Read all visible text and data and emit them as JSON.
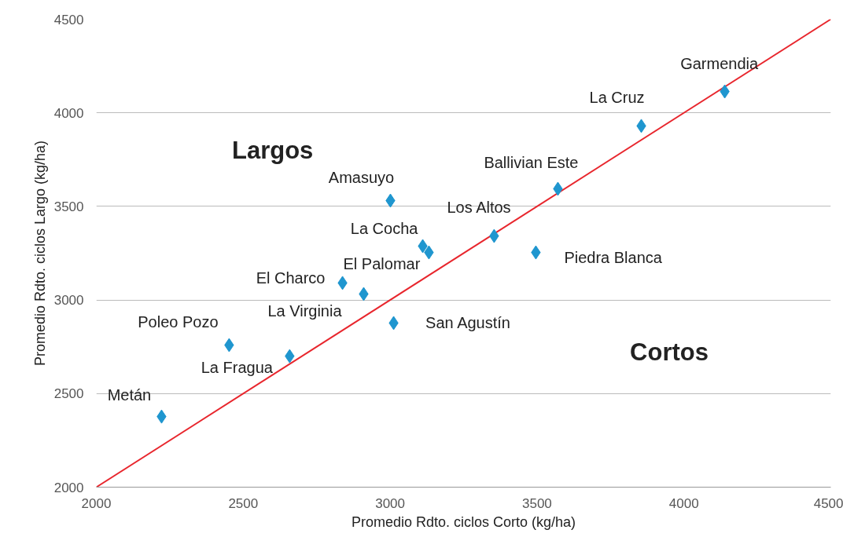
{
  "chart_data": {
    "type": "scatter",
    "xlabel": "Promedio Rdto. ciclos Corto (kg/ha)",
    "ylabel": "Promedio Rdto. ciclos Largo (kg/ha)",
    "xlim": [
      2000,
      4500
    ],
    "xticks": [
      2000,
      2500,
      3000,
      3500,
      4000,
      4500
    ],
    "ylim": [
      2000,
      4500
    ],
    "yticks": [
      2000,
      2500,
      3000,
      3500,
      4000,
      4500
    ],
    "grid": "y",
    "series": [
      {
        "marker": "diamond",
        "color": "#1f96cf",
        "x": [
          2222,
          2452,
          2658,
          2838,
          2910,
          3012,
          3001,
          3111,
          3132,
          3354,
          3496,
          3571,
          3855,
          4139
        ],
        "values": [
          2377,
          2759,
          2700,
          3091,
          3032,
          2877,
          3531,
          3288,
          3254,
          3342,
          3254,
          3594,
          3930,
          4114
        ]
      },
      {
        "type": "line",
        "marker": "none",
        "color": "#e8262d",
        "line_style": "solid",
        "x": [
          2000,
          4500
        ],
        "values": [
          2000,
          4500
        ]
      }
    ],
    "annotations": [
      {
        "text": "Metán",
        "x": 2222,
        "y": 2377
      },
      {
        "text": "Poleo Pozo",
        "x": 2452,
        "y": 2759
      },
      {
        "text": "La Fragua",
        "x": 2658,
        "y": 2700
      },
      {
        "text": "El Charco",
        "x": 2838,
        "y": 3091
      },
      {
        "text": "La Virginia",
        "x": 2910,
        "y": 3032
      },
      {
        "text": "San Agustín",
        "x": 3012,
        "y": 2877
      },
      {
        "text": "Amasuyo",
        "x": 3001,
        "y": 3531
      },
      {
        "text": "La Cocha",
        "x": 3111,
        "y": 3288
      },
      {
        "text": "El Palomar",
        "x": 3132,
        "y": 3254
      },
      {
        "text": "Los  Altos",
        "x": 3354,
        "y": 3342
      },
      {
        "text": "Piedra Blanca",
        "x": 3496,
        "y": 3254
      },
      {
        "text": "Ballivian Este",
        "x": 3571,
        "y": 3594
      },
      {
        "text": "La Cruz",
        "x": 3855,
        "y": 3930
      },
      {
        "text": "Garmendia",
        "x": 4139,
        "y": 4114
      },
      "Largos",
      "Cortos"
    ]
  }
}
